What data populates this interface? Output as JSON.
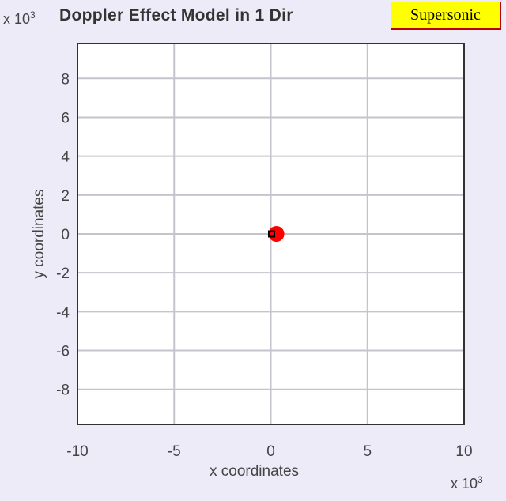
{
  "chart_data": {
    "type": "scatter",
    "title": "Doppler Effect Model in 1 Dir",
    "xlabel": "x coordinates",
    "ylabel": "y coordinates",
    "x_multiplier": "x 10",
    "x_multiplier_exp": "3",
    "y_multiplier": "x 10",
    "y_multiplier_exp": "3",
    "xlim": [
      -10,
      10
    ],
    "ylim": [
      -9.8,
      9.8
    ],
    "xticks": [
      -10,
      -5,
      0,
      5,
      10
    ],
    "yticks": [
      -8,
      -6,
      -4,
      -2,
      0,
      2,
      4,
      6,
      8
    ],
    "grid": true,
    "series": [
      {
        "marker": "filled-circle",
        "color": "#ff0000",
        "points": [
          [
            0.29,
            0
          ]
        ]
      },
      {
        "marker": "square",
        "color": "#000000",
        "points": [
          [
            0.04,
            0
          ]
        ]
      }
    ]
  },
  "badge": {
    "label": "Supersonic",
    "color": "#ffff00"
  }
}
